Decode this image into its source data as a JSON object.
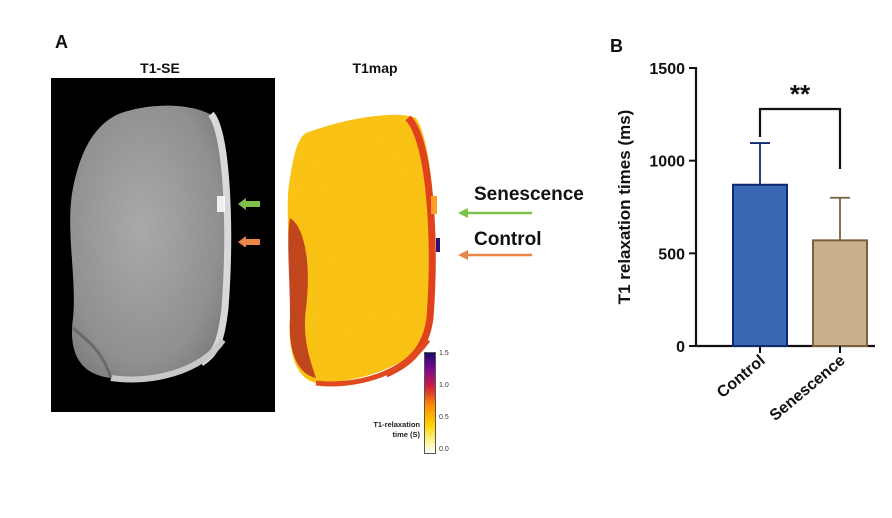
{
  "panel_a": {
    "letter": "A",
    "t1se_title": "T1-SE",
    "t1map_title": "T1map",
    "senescence_label": "Senescence",
    "control_label": "Control",
    "arrow_green": "#7cbf4a",
    "arrow_orange": "#e8864a",
    "colorbar": {
      "label_line1": "T1-relaxation",
      "label_line2": "time (S)",
      "ticks": [
        "1.5",
        "1.0",
        "0.5",
        "0.0"
      ]
    }
  },
  "panel_b": {
    "letter": "B"
  },
  "chart_data": {
    "type": "bar",
    "categories": [
      "Control",
      "Senescence"
    ],
    "values": [
      870,
      570
    ],
    "error_upper": [
      1095,
      800
    ],
    "ylabel": "T1 relaxation times (ms)",
    "ylim": [
      0,
      1500
    ],
    "yticks": [
      "0",
      "500",
      "1000",
      "1500"
    ],
    "significance": "**",
    "colors": [
      "#3a67b4",
      "#c9b08c"
    ],
    "edge_colors": [
      "#0d2a6e",
      "#7a6240"
    ],
    "grid": false
  }
}
